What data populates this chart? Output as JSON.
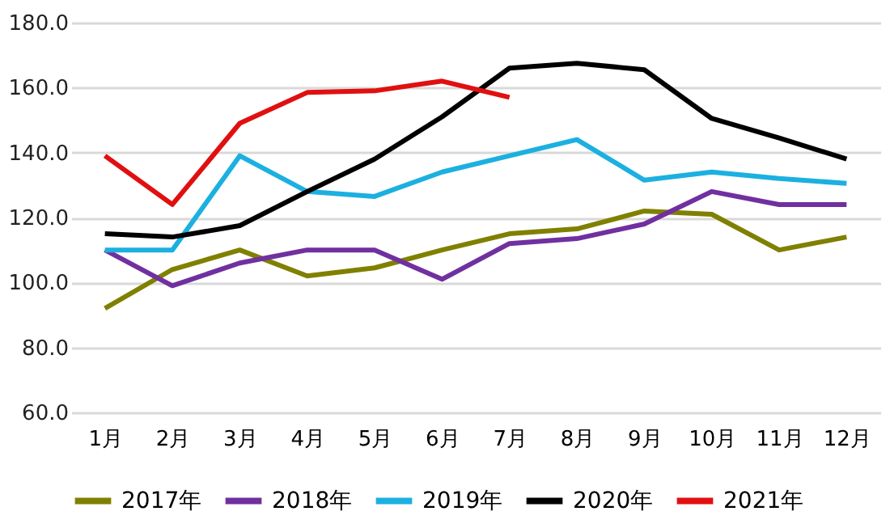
{
  "chart_data": {
    "type": "line",
    "categories": [
      "1月",
      "2月",
      "3月",
      "4月",
      "5月",
      "6月",
      "7月",
      "8月",
      "9月",
      "10月",
      "11月",
      "12月"
    ],
    "series": [
      {
        "name": "2017年",
        "color": "#808000",
        "values": [
          92,
          104,
          110,
          102,
          104.5,
          110,
          115,
          116.5,
          122,
          121,
          110,
          114
        ]
      },
      {
        "name": "2018年",
        "color": "#7030a0",
        "values": [
          110,
          99,
          106,
          110,
          110,
          101,
          112,
          113.5,
          118,
          128,
          124,
          124
        ]
      },
      {
        "name": "2019年",
        "color": "#1cb0e0",
        "values": [
          110,
          110,
          139,
          128,
          126.5,
          134,
          139,
          144,
          131.5,
          134,
          132,
          130.5
        ]
      },
      {
        "name": "2020年",
        "color": "#000000",
        "values": [
          115,
          114,
          117.5,
          128,
          138,
          151,
          166,
          167.5,
          165.5,
          150.5,
          144.5,
          138
        ]
      },
      {
        "name": "2021年",
        "color": "#e01010",
        "values": [
          139,
          124,
          149,
          158.5,
          159,
          162,
          157,
          null,
          null,
          null,
          null,
          null
        ]
      }
    ],
    "ylim": [
      60,
      180
    ],
    "yticks": [
      {
        "value": 60,
        "label": "60.0"
      },
      {
        "value": 80,
        "label": "80.0"
      },
      {
        "value": 100,
        "label": "100.0"
      },
      {
        "value": 120,
        "label": "120.0"
      },
      {
        "value": 140,
        "label": "140.0"
      },
      {
        "value": 160,
        "label": "160.0"
      },
      {
        "value": 180,
        "label": "180.0"
      }
    ],
    "grid": "y",
    "legend": "bottom",
    "marker": "none",
    "line_style": "solid"
  }
}
